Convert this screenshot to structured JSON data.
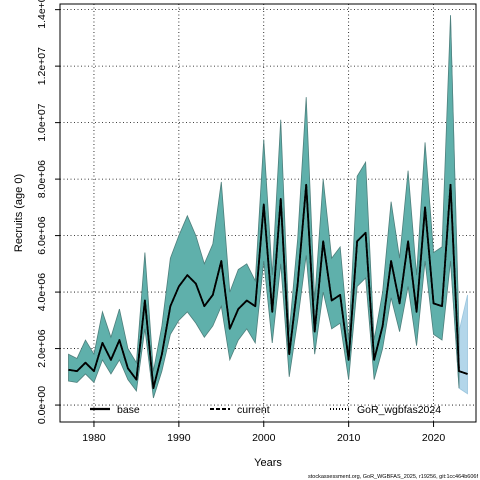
{
  "chart_data": {
    "type": "line",
    "xlabel": "Years",
    "ylabel": "Recruits (age 0)",
    "xlim": [
      1976,
      2025
    ],
    "ylim": [
      -600000,
      14200000
    ],
    "x_ticks": [
      1980,
      1990,
      2000,
      2010,
      2020
    ],
    "y_ticks": [
      0,
      2000000,
      4000000,
      6000000,
      8000000,
      10000000,
      12000000,
      14000000
    ],
    "y_tick_labels": [
      "0.0e+00",
      "2.0e+06",
      "4.0e+06",
      "6.0e+06",
      "8.0e+06",
      "1.0e+07",
      "1.2e+07",
      "1.4e+07"
    ],
    "grid": true,
    "legend_placement": "bottom",
    "colors": {
      "band": "#5fb0ab",
      "band_edge": "#4e7f7c",
      "projection_band": "#b3d6ea",
      "line": "#000000"
    },
    "x": [
      1977,
      1978,
      1979,
      1980,
      1981,
      1982,
      1983,
      1984,
      1985,
      1986,
      1987,
      1988,
      1989,
      1990,
      1991,
      1992,
      1993,
      1994,
      1995,
      1996,
      1997,
      1998,
      1999,
      2000,
      2001,
      2002,
      2003,
      2004,
      2005,
      2006,
      2007,
      2008,
      2009,
      2010,
      2011,
      2012,
      2013,
      2014,
      2015,
      2016,
      2017,
      2018,
      2019,
      2020,
      2021,
      2022,
      2023,
      2024
    ],
    "series": [
      {
        "name": "base",
        "style": "solid",
        "values": [
          1250000,
          1200000,
          1500000,
          1200000,
          2200000,
          1600000,
          2300000,
          1300000,
          900000,
          3700000,
          600000,
          1800000,
          3500000,
          4200000,
          4600000,
          4300000,
          3500000,
          3900000,
          5100000,
          2700000,
          3400000,
          3700000,
          3500000,
          7100000,
          3300000,
          7300000,
          1800000,
          4300000,
          7800000,
          2600000,
          5800000,
          3700000,
          3900000,
          1600000,
          5800000,
          6100000,
          1600000,
          2800000,
          5100000,
          3600000,
          5800000,
          3300000,
          7000000,
          3600000,
          3500000,
          7800000,
          1200000,
          1100000
        ]
      },
      {
        "name": "current",
        "style": "dashed",
        "values": [
          1250000,
          1200000,
          1500000,
          1200000,
          2200000,
          1600000,
          2300000,
          1300000,
          900000,
          3700000,
          600000,
          1800000,
          3500000,
          4200000,
          4600000,
          4300000,
          3500000,
          3900000,
          5100000,
          2700000,
          3400000,
          3700000,
          3500000,
          7100000,
          3300000,
          7300000,
          1800000,
          4300000,
          7800000,
          2600000,
          5800000,
          3700000,
          3900000,
          1600000,
          5800000,
          6100000,
          1600000,
          2800000,
          5100000,
          3600000,
          5800000,
          3300000,
          7000000,
          3600000,
          3500000,
          7800000,
          1200000,
          1100000
        ]
      },
      {
        "name": "GoR_wgbfas2024",
        "style": "dotted",
        "values": [
          1250000,
          1200000,
          1500000,
          1200000,
          2200000,
          1600000,
          2300000,
          1300000,
          900000,
          3700000,
          600000,
          1800000,
          3500000,
          4200000,
          4600000,
          4300000,
          3500000,
          3900000,
          5100000,
          2700000,
          3400000,
          3700000,
          3500000,
          7100000,
          3300000,
          7300000,
          1800000,
          4300000,
          7800000,
          2600000,
          5800000,
          3700000,
          3900000,
          1600000,
          5800000,
          6100000,
          1600000,
          2800000,
          5100000,
          3600000,
          5800000,
          3300000,
          7000000,
          3600000,
          3500000,
          7800000,
          1200000,
          1100000
        ]
      }
    ],
    "band_upper": [
      1800000,
      1650000,
      2300000,
      1800000,
      3300000,
      2400000,
      3400000,
      2000000,
      1500000,
      5400000,
      1200000,
      2800000,
      5200000,
      6000000,
      6700000,
      6000000,
      5000000,
      5700000,
      7900000,
      4000000,
      4800000,
      5000000,
      4400000,
      9400000,
      4600000,
      10100000,
      2600000,
      5900000,
      10900000,
      3700000,
      8000000,
      5200000,
      5600000,
      2300000,
      8100000,
      8600000,
      2300000,
      4000000,
      7200000,
      5200000,
      8300000,
      4600000,
      9300000,
      5400000,
      5600000,
      13800000,
      2600000,
      3900000
    ],
    "band_lower": [
      850000,
      800000,
      1100000,
      800000,
      1600000,
      1100000,
      1600000,
      900000,
      500000,
      2700000,
      250000,
      1200000,
      2500000,
      3000000,
      3300000,
      2900000,
      2400000,
      2800000,
      3500000,
      1600000,
      2300000,
      2700000,
      2200000,
      5100000,
      2200000,
      5000000,
      1000000,
      3000000,
      5300000,
      1800000,
      4000000,
      2700000,
      2900000,
      900000,
      4200000,
      4500000,
      900000,
      2000000,
      3800000,
      2600000,
      4200000,
      2100000,
      5100000,
      2500000,
      2300000,
      5100000,
      600000,
      400000
    ],
    "projection_years": [
      2022,
      2023,
      2024
    ]
  },
  "footer": {
    "text": "stockassessment.org, GoR_WGBFAS_2025, r19256, git:1cc464b606f"
  }
}
